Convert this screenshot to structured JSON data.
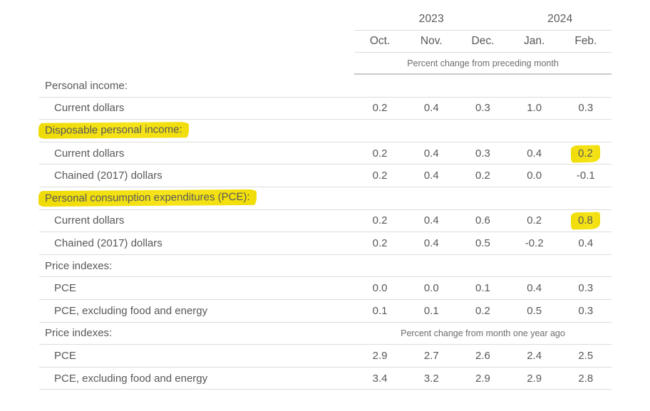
{
  "table": {
    "header": {
      "years": [
        {
          "label": "2023",
          "colspan": 3
        },
        {
          "label": "2024",
          "colspan": 2
        }
      ],
      "months": [
        "Oct.",
        "Nov.",
        "Dec.",
        "Jan.",
        "Feb."
      ],
      "span_note": "Percent change from preceding month"
    },
    "rows": [
      {
        "label": "Personal income:",
        "indent": false,
        "label_highlight": false,
        "values": null
      },
      {
        "label": "Current dollars",
        "indent": true,
        "label_highlight": false,
        "values": [
          "0.2",
          "0.4",
          "0.3",
          "1.0",
          "0.3"
        ]
      },
      {
        "label": "Disposable personal income:",
        "indent": false,
        "label_highlight": true,
        "values": null
      },
      {
        "label": "Current dollars",
        "indent": true,
        "label_highlight": false,
        "values": [
          "0.2",
          "0.4",
          "0.3",
          "0.4",
          "0.2"
        ],
        "highlight_cols": [
          4
        ]
      },
      {
        "label": "Chained (2017) dollars",
        "indent": true,
        "label_highlight": false,
        "values": [
          "0.2",
          "0.4",
          "0.2",
          "0.0",
          "-0.1"
        ]
      },
      {
        "label": "Personal consumption expenditures (PCE):",
        "indent": false,
        "label_highlight": true,
        "values": null
      },
      {
        "label": "Current dollars",
        "indent": true,
        "label_highlight": false,
        "values": [
          "0.2",
          "0.4",
          "0.6",
          "0.2",
          "0.8"
        ],
        "highlight_cols": [
          4
        ]
      },
      {
        "label": "Chained (2017) dollars",
        "indent": true,
        "label_highlight": false,
        "values": [
          "0.2",
          "0.4",
          "0.5",
          "-0.2",
          "0.4"
        ]
      },
      {
        "label": "Price indexes:",
        "indent": false,
        "label_highlight": false,
        "values": null
      },
      {
        "label": "PCE",
        "indent": true,
        "label_highlight": false,
        "values": [
          "0.0",
          "0.0",
          "0.1",
          "0.4",
          "0.3"
        ]
      },
      {
        "label": "PCE, excluding food and energy",
        "indent": true,
        "label_highlight": false,
        "values": [
          "0.1",
          "0.1",
          "0.2",
          "0.5",
          "0.3"
        ]
      },
      {
        "label": "Price indexes:",
        "indent": false,
        "label_highlight": false,
        "values": null,
        "span_note": "Percent change from month one year ago"
      },
      {
        "label": "PCE",
        "indent": true,
        "label_highlight": false,
        "values": [
          "2.9",
          "2.7",
          "2.6",
          "2.4",
          "2.5"
        ]
      },
      {
        "label": "PCE, excluding food and energy",
        "indent": true,
        "label_highlight": false,
        "values": [
          "3.4",
          "3.2",
          "2.9",
          "2.9",
          "2.8"
        ]
      }
    ]
  },
  "colors": {
    "highlight_yellow": "#f3df10",
    "text": "#58585a",
    "note_text": "#6d6d6d",
    "line": "#dcdcdc",
    "line_strong": "#c9c9c9",
    "background": "#ffffff"
  }
}
